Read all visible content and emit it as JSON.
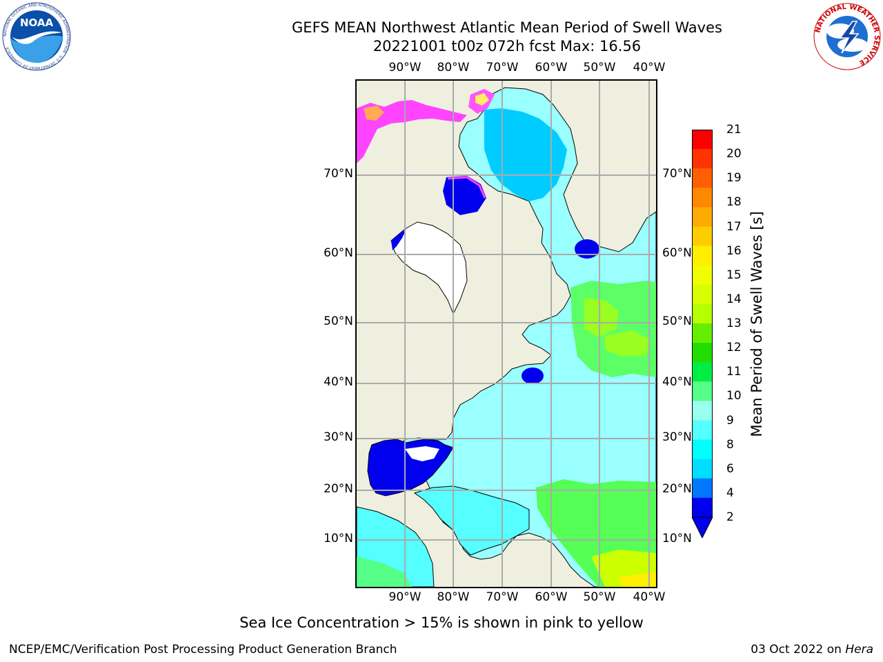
{
  "title_line1": "GEFS MEAN Northwest Atlantic Mean Period of Swell Waves",
  "title_line2": "20221001 t00z 072h fcst   Max: 16.56",
  "lon_labels": [
    "90°W",
    "80°W",
    "70°W",
    "60°W",
    "50°W",
    "40°W"
  ],
  "lat_labels": [
    "70°N",
    "60°N",
    "50°N",
    "40°N",
    "30°N",
    "20°N",
    "10°N"
  ],
  "colorbar": {
    "title": "Mean Period of Swell Waves [s]",
    "ticks": [
      "21",
      "20",
      "19",
      "18",
      "17",
      "16",
      "15",
      "14",
      "13",
      "12",
      "11",
      "10",
      "9",
      "8",
      "6",
      "4",
      "2"
    ],
    "colors": [
      "#ff0000",
      "#ff3300",
      "#ff5f00",
      "#ff8800",
      "#ffaa00",
      "#ffcc00",
      "#ffee00",
      "#f0ff00",
      "#d8ff00",
      "#b6ff00",
      "#66ee00",
      "#22dd00",
      "#00ee44",
      "#55ff88",
      "#99ffee",
      "#55ffff",
      "#00ffff",
      "#00ddff",
      "#0077ff",
      "#0000ee"
    ]
  },
  "footer_note": "Sea Ice Concentration > 15% is shown in pink to yellow",
  "footer_left": "NCEP/EMC/Verification Post Processing Product Generation Branch",
  "footer_right_date": "03 Oct 2022 on",
  "footer_right_host": "Hera",
  "logos": {
    "noaa_text": "NOAA",
    "noaa_ring": "NATIONAL OCEANIC AND ATMOSPHERIC ADMINISTRATION · U.S. DEPARTMENT OF COMMERCE",
    "nws_ring": "NATIONAL WEATHER SERVICE"
  }
}
